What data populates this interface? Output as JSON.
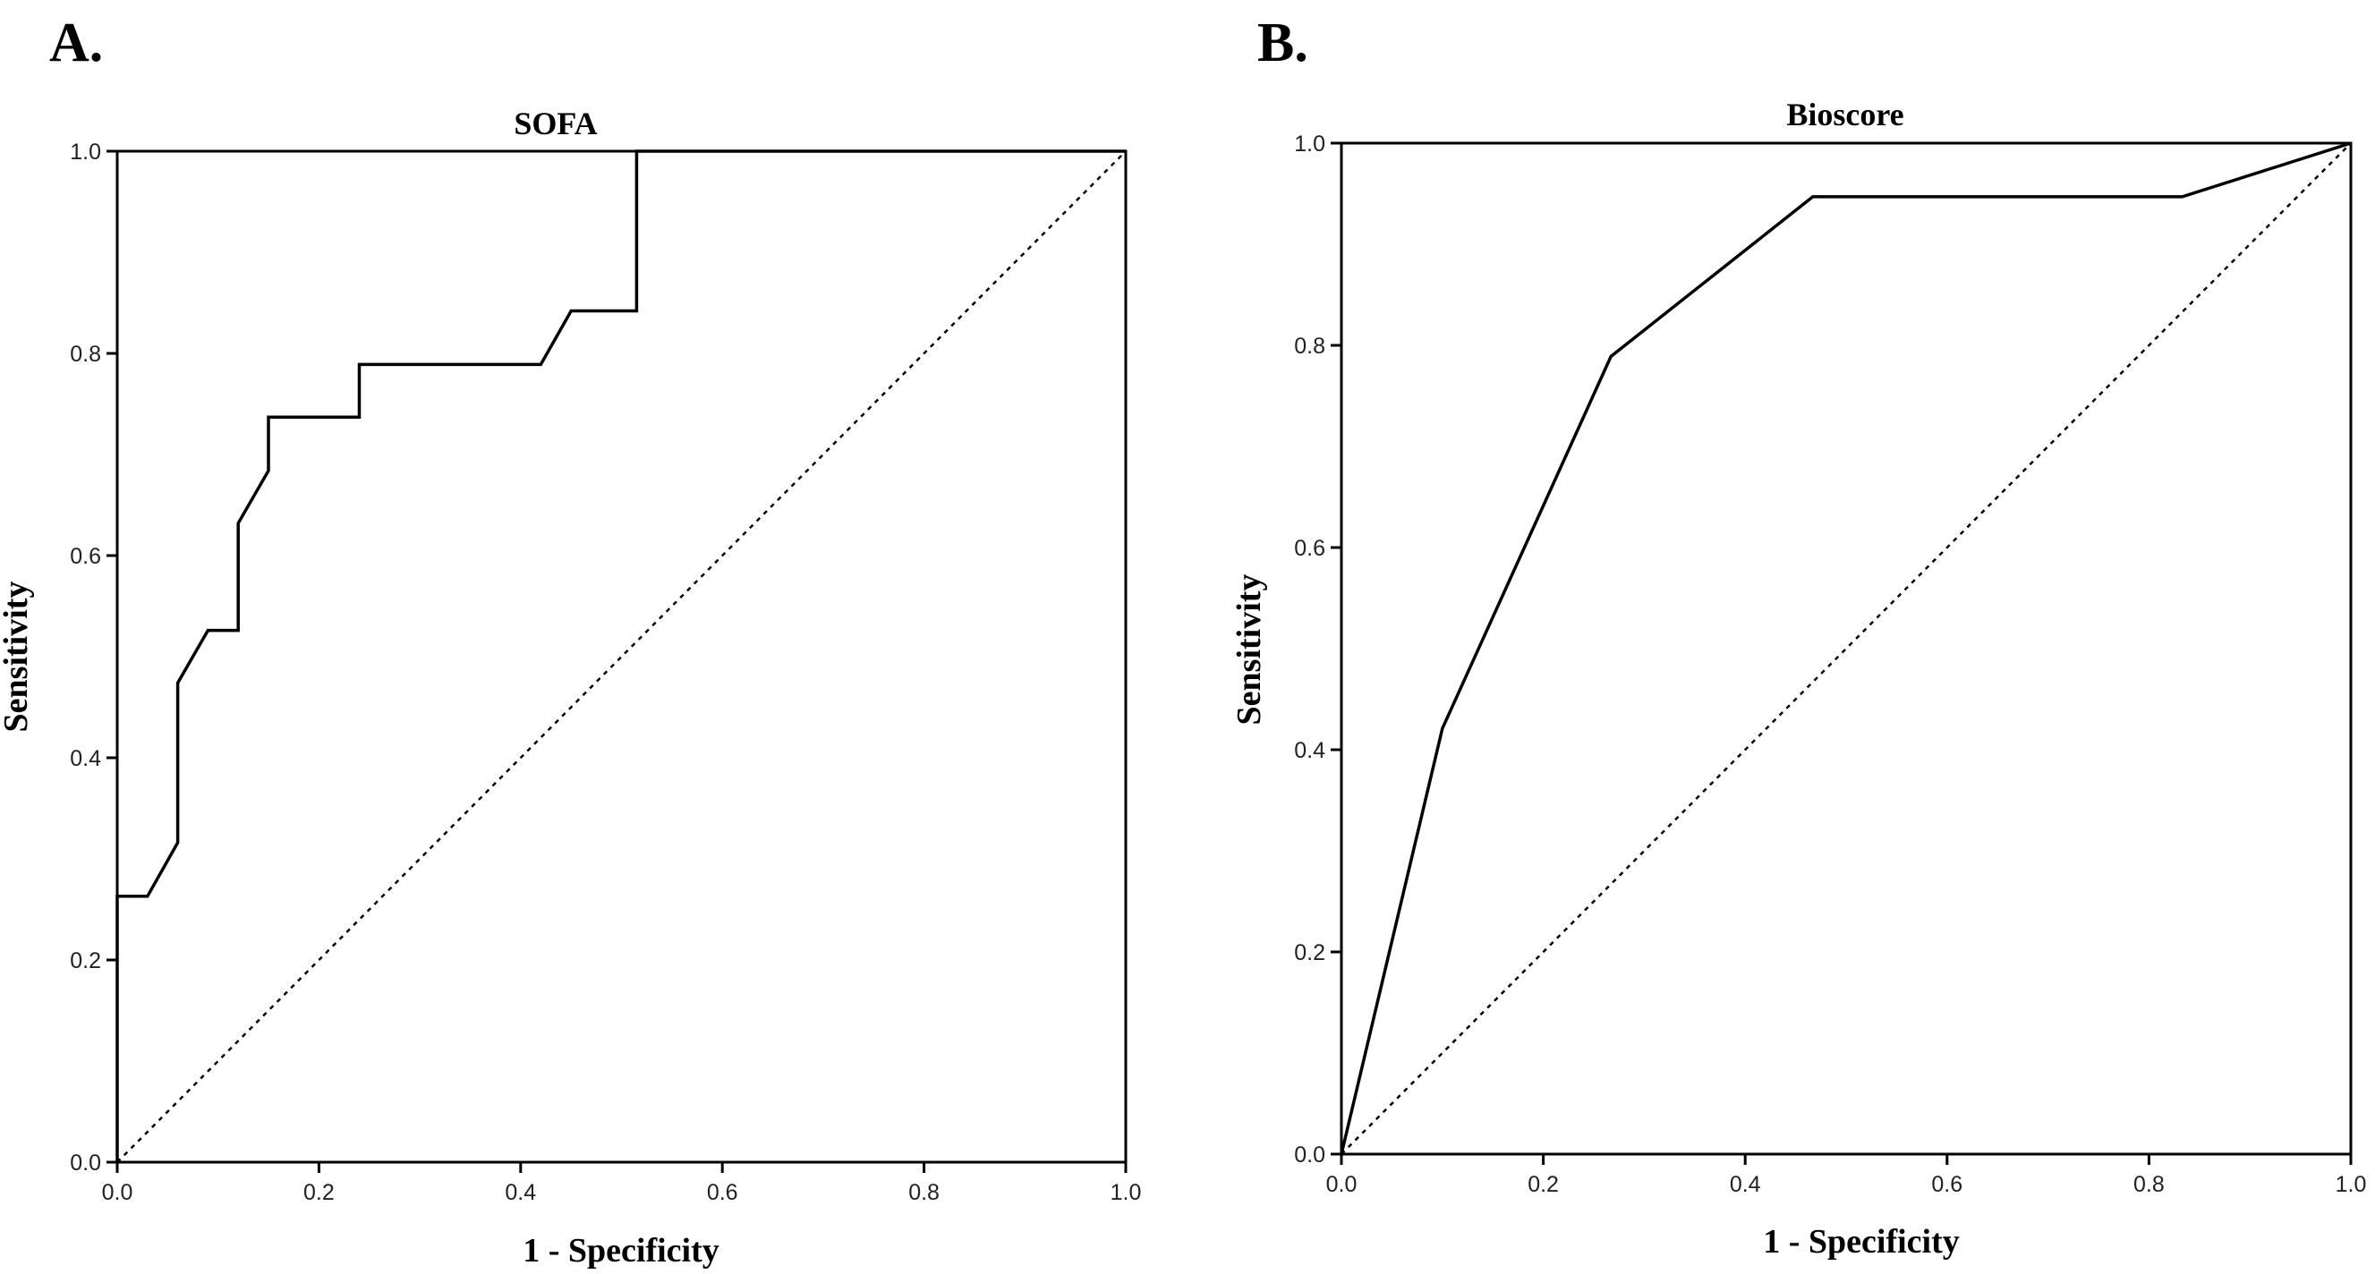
{
  "chart_data": [
    {
      "type": "line",
      "panel_label": "A.",
      "title": "SOFA",
      "xlabel": "1 - Specificity",
      "ylabel": "Sensitivity",
      "xlim": [
        0,
        1
      ],
      "ylim": [
        0,
        1
      ],
      "xticks": [
        0.0,
        0.2,
        0.4,
        0.6,
        0.8,
        1.0
      ],
      "yticks": [
        0.0,
        0.2,
        0.4,
        0.6,
        0.8,
        1.0
      ],
      "xtick_labels": [
        "0.0",
        "0.2",
        "0.4",
        "0.6",
        "0.8",
        "1.0"
      ],
      "ytick_labels": [
        "0.0",
        "0.2",
        "0.4",
        "0.6",
        "0.8",
        "1.0"
      ],
      "grid": false,
      "series": [
        {
          "style": "solid",
          "x": [
            0.0,
            0.0,
            0.03,
            0.06,
            0.06,
            0.09,
            0.12,
            0.12,
            0.15,
            0.15,
            0.24,
            0.24,
            0.42,
            0.45,
            0.515,
            0.515,
            1.0
          ],
          "y": [
            0.0,
            0.263,
            0.263,
            0.316,
            0.474,
            0.526,
            0.526,
            0.632,
            0.684,
            0.737,
            0.737,
            0.789,
            0.789,
            0.842,
            0.842,
            1.0,
            1.0
          ]
        },
        {
          "style": "dashed",
          "x": [
            0.0,
            1.0
          ],
          "y": [
            0.0,
            1.0
          ]
        }
      ]
    },
    {
      "type": "line",
      "panel_label": "B.",
      "title": "Bioscore",
      "xlabel": "1 - Specificity",
      "ylabel": "Sensitivity",
      "xlim": [
        0,
        1
      ],
      "ylim": [
        0,
        1
      ],
      "xticks": [
        0.0,
        0.2,
        0.4,
        0.6,
        0.8,
        1.0
      ],
      "yticks": [
        0.0,
        0.2,
        0.4,
        0.6,
        0.8,
        1.0
      ],
      "xtick_labels": [
        "0.0",
        "0.2",
        "0.4",
        "0.6",
        "0.8",
        "1.0"
      ],
      "ytick_labels": [
        "0.0",
        "0.2",
        "0.4",
        "0.6",
        "0.8",
        "1.0"
      ],
      "grid": false,
      "series": [
        {
          "style": "solid",
          "x": [
            0.0,
            0.1,
            0.267,
            0.467,
            0.833,
            1.0
          ],
          "y": [
            0.0,
            0.421,
            0.789,
            0.947,
            0.947,
            1.0
          ]
        },
        {
          "style": "dashed",
          "x": [
            0.0,
            1.0
          ],
          "y": [
            0.0,
            1.0
          ]
        }
      ]
    }
  ]
}
